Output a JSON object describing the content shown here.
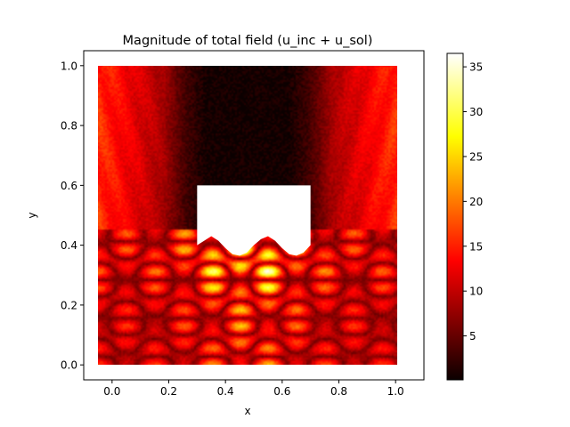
{
  "chart_data": {
    "type": "heatmap",
    "title": "Magnitude of total field (u_inc + u_sol)",
    "xlabel": "x",
    "ylabel": "y",
    "xlim": [
      -0.1,
      1.1
    ],
    "ylim": [
      -0.05,
      1.05
    ],
    "x_ticks": [
      "0.0",
      "0.2",
      "0.4",
      "0.6",
      "0.8",
      "1.0"
    ],
    "y_ticks": [
      "0.0",
      "0.2",
      "0.4",
      "0.6",
      "0.8",
      "1.0"
    ],
    "domain": {
      "x": [
        0.0,
        1.0
      ],
      "y": [
        0.0,
        1.0
      ]
    },
    "obstacle": {
      "x": [
        0.3,
        0.7
      ],
      "top_y": 0.6,
      "bottom_profile": [
        [
          0.3,
          0.4
        ],
        [
          0.325,
          0.415
        ],
        [
          0.35,
          0.43
        ],
        [
          0.375,
          0.415
        ],
        [
          0.4,
          0.39
        ],
        [
          0.425,
          0.37
        ],
        [
          0.45,
          0.365
        ],
        [
          0.475,
          0.375
        ],
        [
          0.5,
          0.4
        ],
        [
          0.525,
          0.42
        ],
        [
          0.55,
          0.43
        ],
        [
          0.575,
          0.415
        ],
        [
          0.6,
          0.39
        ],
        [
          0.625,
          0.37
        ],
        [
          0.65,
          0.365
        ],
        [
          0.675,
          0.375
        ],
        [
          0.7,
          0.4
        ]
      ]
    },
    "colorbar": {
      "colormap": "hot",
      "min": 0.1,
      "max": 36.5,
      "ticks": [
        "5",
        "10",
        "15",
        "20",
        "25",
        "30",
        "35"
      ]
    }
  }
}
